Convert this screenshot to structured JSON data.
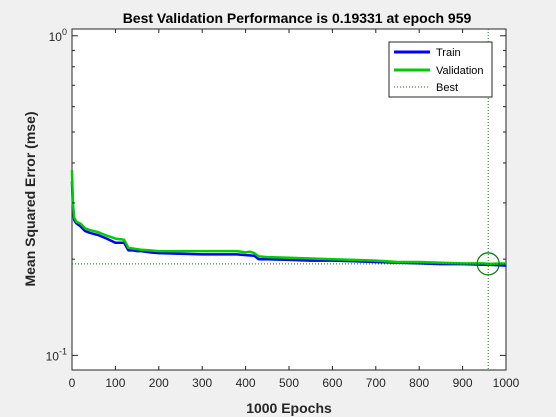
{
  "chart_data": {
    "type": "line",
    "title": "Best Validation Performance is 0.19331 at epoch 959",
    "xlabel": "1000 Epochs",
    "ylabel": "Mean Squared Error  (mse)",
    "xlim": [
      0,
      1000
    ],
    "ylim": [
      0.09,
      1.05
    ],
    "yscale": "log",
    "grid": false,
    "legend_position": "top-right",
    "x_ticks": [
      0,
      100,
      200,
      300,
      400,
      500,
      600,
      700,
      800,
      900,
      1000
    ],
    "y_ticks": [
      {
        "value": 0.1,
        "base": "10",
        "exp": "-1"
      },
      {
        "value": 1,
        "base": "10",
        "exp": "0"
      }
    ],
    "series": [
      {
        "name": "Train",
        "color": "#0000ff",
        "x": [
          0,
          2,
          5,
          10,
          20,
          30,
          40,
          50,
          60,
          80,
          100,
          120,
          130,
          140,
          150,
          160,
          180,
          200,
          250,
          300,
          350,
          380,
          400,
          420,
          430,
          450,
          500,
          550,
          600,
          650,
          700,
          750,
          800,
          850,
          900,
          950,
          959,
          1000
        ],
        "y": [
          0.35,
          0.29,
          0.265,
          0.259,
          0.253,
          0.245,
          0.242,
          0.24,
          0.238,
          0.232,
          0.225,
          0.225,
          0.213,
          0.213,
          0.212,
          0.212,
          0.21,
          0.209,
          0.208,
          0.207,
          0.207,
          0.207,
          0.206,
          0.205,
          0.2,
          0.2,
          0.199,
          0.198,
          0.198,
          0.197,
          0.196,
          0.195,
          0.194,
          0.193,
          0.193,
          0.192,
          0.192,
          0.191
        ]
      },
      {
        "name": "Validation",
        "color": "#00cc00",
        "x": [
          0,
          2,
          5,
          10,
          20,
          30,
          40,
          50,
          60,
          80,
          100,
          120,
          130,
          140,
          150,
          160,
          180,
          200,
          250,
          300,
          350,
          380,
          400,
          410,
          420,
          430,
          450,
          500,
          550,
          600,
          650,
          700,
          750,
          800,
          850,
          900,
          950,
          959,
          1000
        ],
        "y": [
          0.38,
          0.3,
          0.27,
          0.262,
          0.258,
          0.25,
          0.247,
          0.245,
          0.243,
          0.237,
          0.232,
          0.23,
          0.217,
          0.216,
          0.215,
          0.214,
          0.213,
          0.212,
          0.212,
          0.212,
          0.212,
          0.212,
          0.21,
          0.211,
          0.209,
          0.204,
          0.203,
          0.202,
          0.201,
          0.2,
          0.199,
          0.198,
          0.196,
          0.196,
          0.195,
          0.194,
          0.194,
          0.1933,
          0.194
        ]
      }
    ],
    "best": {
      "name": "Best",
      "color": "#008000",
      "epoch": 959,
      "value": 0.19331
    }
  }
}
